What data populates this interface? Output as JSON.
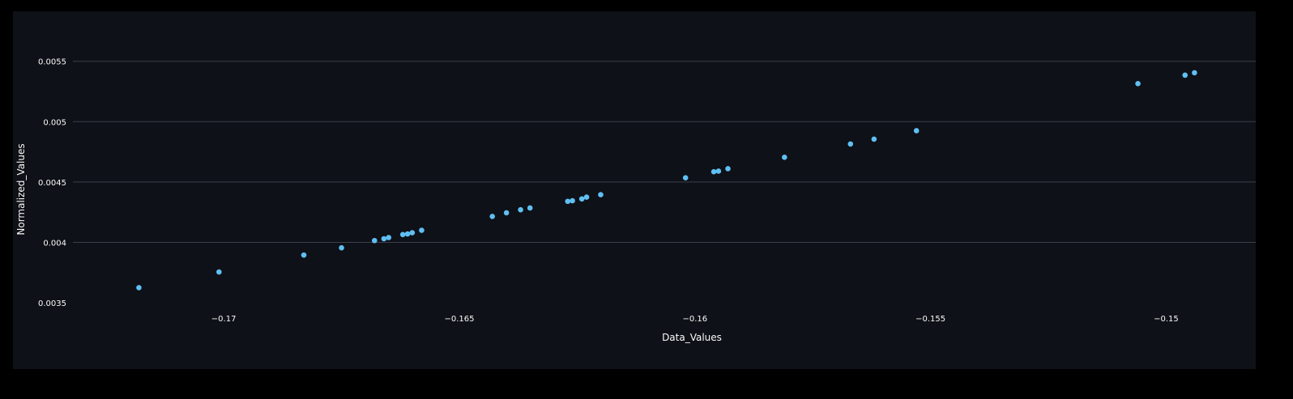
{
  "chart_data": {
    "type": "scatter",
    "xlabel": "Data_Values",
    "ylabel": "Normalized_Values",
    "xlim": [
      -0.1732,
      -0.1481
    ],
    "ylim": [
      0.00342,
      0.00586
    ],
    "x_ticks": [
      -0.17,
      -0.165,
      -0.16,
      -0.155,
      -0.15
    ],
    "x_tick_labels": [
      "−0.17",
      "−0.165",
      "−0.16",
      "−0.155",
      "−0.15"
    ],
    "y_ticks": [
      0.0035,
      0.004,
      0.0045,
      0.005,
      0.0055
    ],
    "y_tick_labels": [
      "0.0035",
      "0.004",
      "0.0045",
      "0.005",
      "0.0055"
    ],
    "grid": "horizontal",
    "colors": {
      "point": "#5fbff3",
      "grid": "#3a3f4b",
      "text": "#fafafa",
      "background": "#0e1117"
    },
    "points": [
      {
        "x": -0.1718,
        "y": 0.003625
      },
      {
        "x": -0.1701,
        "y": 0.003755
      },
      {
        "x": -0.1683,
        "y": 0.003895
      },
      {
        "x": -0.1675,
        "y": 0.003955
      },
      {
        "x": -0.1668,
        "y": 0.004015
      },
      {
        "x": -0.1666,
        "y": 0.00403
      },
      {
        "x": -0.1665,
        "y": 0.00404
      },
      {
        "x": -0.1662,
        "y": 0.004065
      },
      {
        "x": -0.1661,
        "y": 0.00407
      },
      {
        "x": -0.166,
        "y": 0.00408
      },
      {
        "x": -0.1658,
        "y": 0.0041
      },
      {
        "x": -0.1643,
        "y": 0.004215
      },
      {
        "x": -0.164,
        "y": 0.004245
      },
      {
        "x": -0.1637,
        "y": 0.00427
      },
      {
        "x": -0.1635,
        "y": 0.004285
      },
      {
        "x": -0.1627,
        "y": 0.00434
      },
      {
        "x": -0.1626,
        "y": 0.004345
      },
      {
        "x": -0.1624,
        "y": 0.00436
      },
      {
        "x": -0.1623,
        "y": 0.004375
      },
      {
        "x": -0.162,
        "y": 0.004395
      },
      {
        "x": -0.1602,
        "y": 0.004535
      },
      {
        "x": -0.1596,
        "y": 0.004585
      },
      {
        "x": -0.1595,
        "y": 0.00459
      },
      {
        "x": -0.1593,
        "y": 0.00461
      },
      {
        "x": -0.1581,
        "y": 0.004705
      },
      {
        "x": -0.1567,
        "y": 0.004815
      },
      {
        "x": -0.1562,
        "y": 0.004855
      },
      {
        "x": -0.1553,
        "y": 0.004925
      },
      {
        "x": -0.1506,
        "y": 0.005315
      },
      {
        "x": -0.1496,
        "y": 0.005385
      },
      {
        "x": -0.1494,
        "y": 0.005405
      }
    ]
  }
}
